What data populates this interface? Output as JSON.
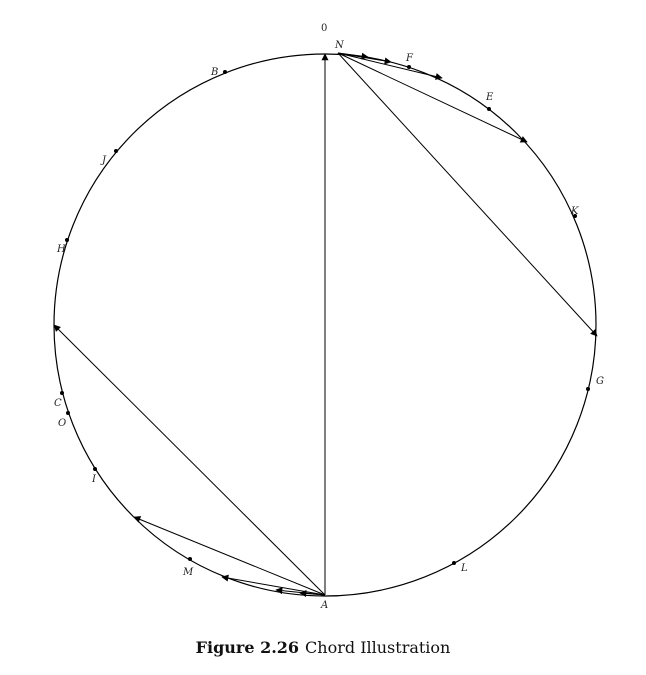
{
  "figure": {
    "zero_label": "0",
    "caption_number": "Figure 2.26",
    "caption_title": "Chord Illustration"
  },
  "points": [
    {
      "name": "N",
      "dot": false
    },
    {
      "name": "F",
      "dot": true
    },
    {
      "name": "E",
      "dot": true
    },
    {
      "name": "K",
      "dot": true
    },
    {
      "name": "G",
      "dot": true
    },
    {
      "name": "L",
      "dot": true
    },
    {
      "name": "A",
      "dot": false
    },
    {
      "name": "M",
      "dot": true
    },
    {
      "name": "I",
      "dot": true
    },
    {
      "name": "O",
      "dot": true
    },
    {
      "name": "C",
      "dot": true
    },
    {
      "name": "H",
      "dot": true
    },
    {
      "name": "J",
      "dot": true
    },
    {
      "name": "B",
      "dot": true
    }
  ]
}
